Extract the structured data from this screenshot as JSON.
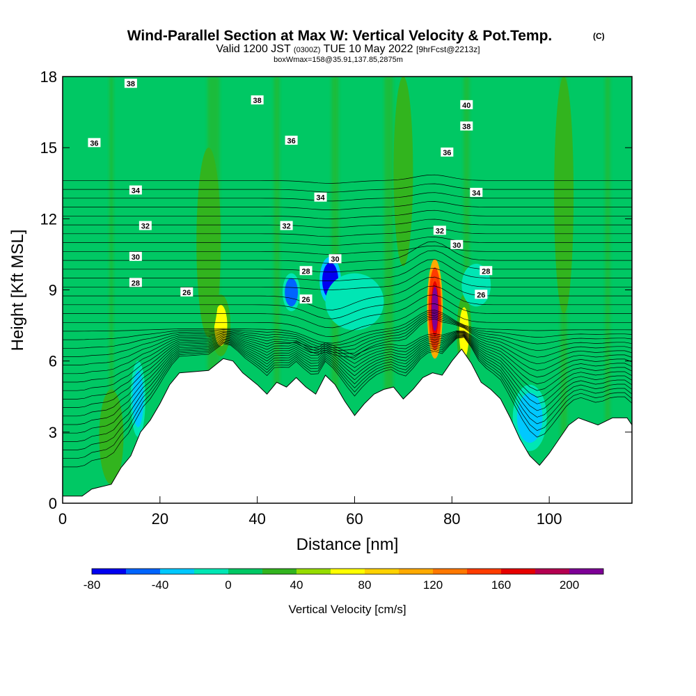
{
  "chart_data": {
    "type": "heatmap",
    "title": "Wind-Parallel Section at Max W: Vertical Velocity & Pot.Temp.",
    "title_mark": "(C)",
    "subtitle_main": "Valid 1200 JST",
    "subtitle_utc": "(0300Z)",
    "subtitle_date": "TUE 10 May 2022",
    "subtitle_fcst": "[9hrFcst@2213z]",
    "info": "boxWmax=158@35.91,137.85,2875m",
    "xlabel": "Distance [nm]",
    "ylabel": "Height [Kft MSL]",
    "xlim": [
      0,
      117
    ],
    "ylim": [
      0,
      18
    ],
    "x_ticks": [
      0,
      20,
      40,
      60,
      80,
      100
    ],
    "y_ticks": [
      0,
      3,
      6,
      9,
      12,
      15,
      18
    ],
    "colorbar": {
      "label": "Vertical Velocity [cm/s]",
      "range": [
        -80,
        220
      ],
      "step": 20,
      "tick_values": [
        -80,
        -40,
        0,
        40,
        80,
        120,
        160,
        200
      ],
      "colors": [
        "#0000f0",
        "#0064ff",
        "#00c8ff",
        "#00e6b4",
        "#00c864",
        "#32b41e",
        "#96dc00",
        "#ffff00",
        "#ffd200",
        "#ffaa00",
        "#ff7800",
        "#ff3c00",
        "#e60000",
        "#b40050",
        "#7d0096"
      ]
    },
    "background_velocity": 5,
    "terrain_kft": [
      [
        0,
        0.3
      ],
      [
        4,
        0.3
      ],
      [
        6,
        0.6
      ],
      [
        10,
        0.8
      ],
      [
        12,
        1.5
      ],
      [
        14,
        2.0
      ],
      [
        16,
        3.0
      ],
      [
        18,
        3.5
      ],
      [
        20,
        4.2
      ],
      [
        22,
        5.0
      ],
      [
        24,
        5.5
      ],
      [
        30,
        5.6
      ],
      [
        33,
        6.1
      ],
      [
        35,
        6.0
      ],
      [
        37,
        5.5
      ],
      [
        40,
        5.0
      ],
      [
        42,
        4.6
      ],
      [
        44,
        5.1
      ],
      [
        46,
        4.9
      ],
      [
        48,
        5.3
      ],
      [
        50,
        4.9
      ],
      [
        52,
        4.6
      ],
      [
        54,
        5.4
      ],
      [
        56,
        5.0
      ],
      [
        58,
        4.3
      ],
      [
        60,
        3.7
      ],
      [
        62,
        4.2
      ],
      [
        64,
        4.6
      ],
      [
        66,
        4.8
      ],
      [
        68,
        4.9
      ],
      [
        70,
        4.4
      ],
      [
        72,
        4.8
      ],
      [
        74,
        5.3
      ],
      [
        76,
        5.5
      ],
      [
        78,
        5.4
      ],
      [
        80,
        6.0
      ],
      [
        82,
        6.5
      ],
      [
        84,
        5.9
      ],
      [
        86,
        5.1
      ],
      [
        88,
        4.8
      ],
      [
        90,
        4.4
      ],
      [
        92,
        3.6
      ],
      [
        94,
        2.7
      ],
      [
        96,
        2.0
      ],
      [
        98,
        1.6
      ],
      [
        100,
        2.1
      ],
      [
        102,
        2.7
      ],
      [
        104,
        3.3
      ],
      [
        106,
        3.6
      ],
      [
        110,
        3.3
      ],
      [
        113,
        3.6
      ],
      [
        116,
        3.6
      ],
      [
        117,
        3.3
      ]
    ],
    "velocity_features": [
      {
        "x": 76.5,
        "y": 8.2,
        "rx": 1.6,
        "ry": 2.1,
        "value": 170
      },
      {
        "x": 76.5,
        "y": 8.2,
        "rx": 1.0,
        "ry": 1.4,
        "value": 200
      },
      {
        "x": 32.5,
        "y": 7.5,
        "rx": 2.0,
        "ry": 1.3,
        "value": 60
      },
      {
        "x": 82.5,
        "y": 7.2,
        "rx": 1.5,
        "ry": 1.6,
        "value": 60
      },
      {
        "x": 55,
        "y": 9.4,
        "rx": 2.2,
        "ry": 1.0,
        "value": -75
      },
      {
        "x": 47,
        "y": 8.9,
        "rx": 1.8,
        "ry": 0.8,
        "value": -50
      },
      {
        "x": 96,
        "y": 3.6,
        "rx": 3.5,
        "ry": 1.4,
        "value": -25
      },
      {
        "x": 15.5,
        "y": 4.4,
        "rx": 1.5,
        "ry": 1.6,
        "value": -40
      },
      {
        "x": 60,
        "y": 8.5,
        "rx": 6,
        "ry": 1.2,
        "value": -20
      },
      {
        "x": 85,
        "y": 9.2,
        "rx": 3.0,
        "ry": 0.9,
        "value": -15
      },
      {
        "x": 10,
        "y": 2.8,
        "rx": 2.5,
        "ry": 2.0,
        "value": 30
      },
      {
        "x": 30,
        "y": 11,
        "rx": 2.5,
        "ry": 4,
        "value": 25
      },
      {
        "x": 103,
        "y": 13,
        "rx": 2,
        "ry": 5,
        "value": 25
      },
      {
        "x": 70,
        "y": 14,
        "rx": 2,
        "ry": 4,
        "value": 25
      }
    ],
    "theta_contour_labels": [
      {
        "x": 14,
        "y": 17.7,
        "text": "38"
      },
      {
        "x": 40,
        "y": 17.0,
        "text": "38"
      },
      {
        "x": 83,
        "y": 16.8,
        "text": "40"
      },
      {
        "x": 83,
        "y": 15.9,
        "text": "38"
      },
      {
        "x": 6.5,
        "y": 15.2,
        "text": "36"
      },
      {
        "x": 47,
        "y": 15.3,
        "text": "36"
      },
      {
        "x": 79,
        "y": 14.8,
        "text": "36"
      },
      {
        "x": 15,
        "y": 13.2,
        "text": "34"
      },
      {
        "x": 53,
        "y": 12.9,
        "text": "34"
      },
      {
        "x": 85,
        "y": 13.1,
        "text": "34"
      },
      {
        "x": 17,
        "y": 11.7,
        "text": "32"
      },
      {
        "x": 46,
        "y": 11.7,
        "text": "32"
      },
      {
        "x": 77.5,
        "y": 11.5,
        "text": "32"
      },
      {
        "x": 15,
        "y": 10.4,
        "text": "30"
      },
      {
        "x": 56,
        "y": 10.3,
        "text": "30"
      },
      {
        "x": 81,
        "y": 10.9,
        "text": "30"
      },
      {
        "x": 15,
        "y": 9.3,
        "text": "28"
      },
      {
        "x": 50,
        "y": 9.8,
        "text": "28"
      },
      {
        "x": 87,
        "y": 9.8,
        "text": "28"
      },
      {
        "x": 25.5,
        "y": 8.9,
        "text": "26"
      },
      {
        "x": 50,
        "y": 8.6,
        "text": "26"
      },
      {
        "x": 86,
        "y": 8.8,
        "text": "26"
      }
    ]
  }
}
